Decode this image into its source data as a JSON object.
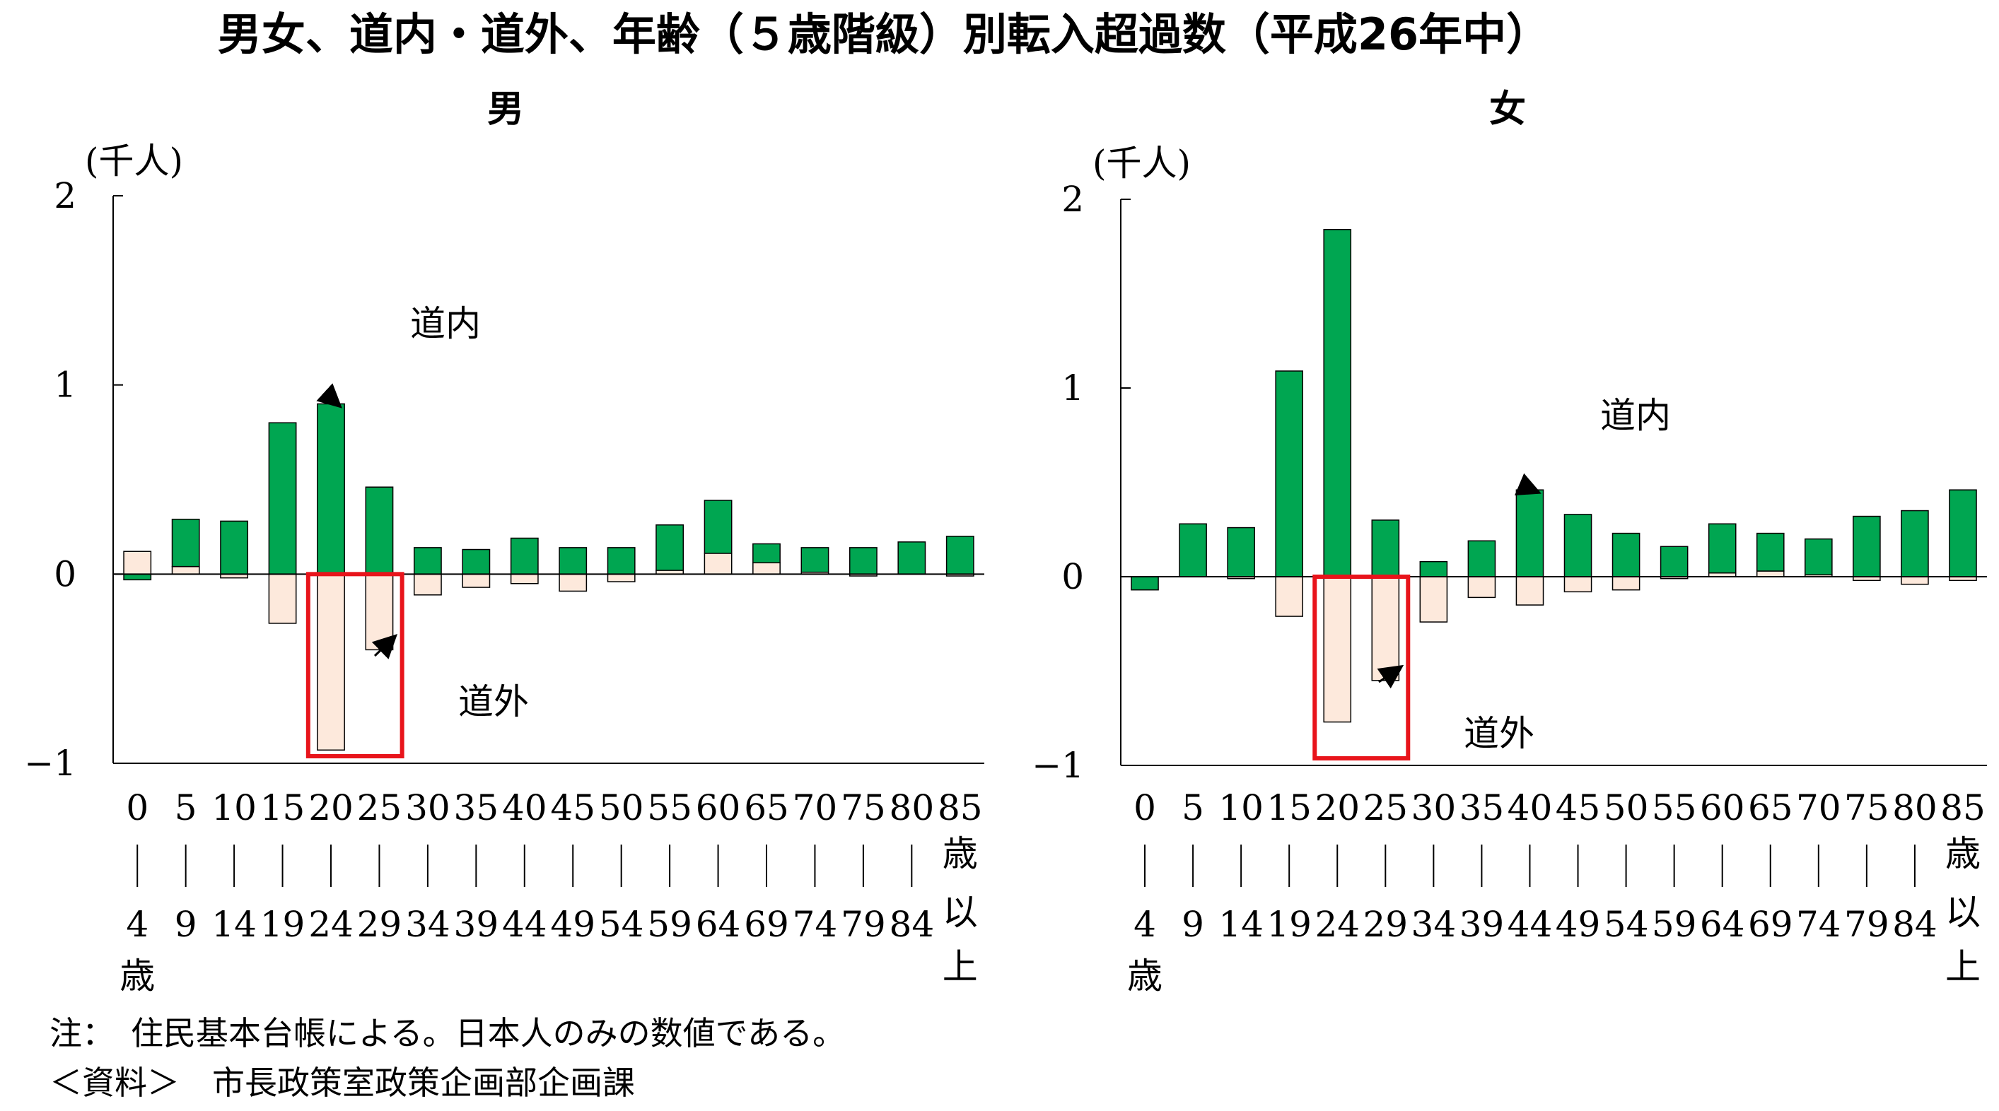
{
  "title": "男女、道内・道外、年齢（５歳階級）別転入超過数（平成26年中）",
  "note": "注：　住民基本台帳による。日本人のみの数値である。",
  "source": "＜資料＞　市長政策室政策企画部企画課",
  "colors": {
    "domestic": "#00a651",
    "outside": "#fde9dc",
    "highlight": "#e8141b"
  },
  "chart_data": [
    {
      "type": "bar",
      "title": "男",
      "ylabel": "(千人)",
      "ylim": [
        -1,
        2
      ],
      "yticks": [
        "2",
        "1",
        "0",
        "−1"
      ],
      "categories_top": [
        "0",
        "5",
        "10",
        "15",
        "20",
        "25",
        "30",
        "35",
        "40",
        "45",
        "50",
        "55",
        "60",
        "65",
        "70",
        "75",
        "80",
        "85"
      ],
      "categories_bottom": [
        "4",
        "9",
        "14",
        "19",
        "24",
        "29",
        "34",
        "39",
        "44",
        "49",
        "54",
        "59",
        "64",
        "69",
        "74",
        "79",
        "84",
        "以"
      ],
      "cat_first_suffix": "歳",
      "cat_last_mid": "歳",
      "cat_last_bottom": "上",
      "series": [
        {
          "name": "道内",
          "values": [
            -0.03,
            0.25,
            0.28,
            0.8,
            0.9,
            0.46,
            0.14,
            0.13,
            0.19,
            0.14,
            0.14,
            0.24,
            0.28,
            0.1,
            0.13,
            0.14,
            0.17,
            0.2
          ]
        },
        {
          "name": "道外",
          "values": [
            0.12,
            0.04,
            -0.02,
            -0.26,
            -0.93,
            -0.4,
            -0.11,
            -0.07,
            -0.05,
            -0.09,
            -0.04,
            0.02,
            0.11,
            0.06,
            0.01,
            -0.01,
            0.0,
            -0.01
          ]
        }
      ],
      "annotations": [
        {
          "text": "道内",
          "target_index": 4,
          "series": 0
        },
        {
          "text": "道外",
          "target_index": 5,
          "series": 1
        }
      ],
      "highlight_range": [
        4,
        5
      ]
    },
    {
      "type": "bar",
      "title": "女",
      "ylabel": "(千人)",
      "ylim": [
        -1,
        2
      ],
      "yticks": [
        "2",
        "1",
        "0",
        "−1"
      ],
      "categories_top": [
        "0",
        "5",
        "10",
        "15",
        "20",
        "25",
        "30",
        "35",
        "40",
        "45",
        "50",
        "55",
        "60",
        "65",
        "70",
        "75",
        "80",
        "85"
      ],
      "categories_bottom": [
        "4",
        "9",
        "14",
        "19",
        "24",
        "29",
        "34",
        "39",
        "44",
        "49",
        "54",
        "59",
        "64",
        "69",
        "74",
        "79",
        "84",
        "以"
      ],
      "cat_first_suffix": "歳",
      "cat_last_mid": "歳",
      "cat_last_bottom": "上",
      "series": [
        {
          "name": "道内",
          "values": [
            -0.07,
            0.28,
            0.26,
            1.09,
            1.84,
            0.3,
            0.08,
            0.19,
            0.46,
            0.33,
            0.23,
            0.16,
            0.26,
            0.2,
            0.19,
            0.32,
            0.35,
            0.46
          ]
        },
        {
          "name": "道外",
          "values": [
            0.0,
            0.0,
            -0.01,
            -0.21,
            -0.77,
            -0.55,
            -0.24,
            -0.11,
            -0.15,
            -0.08,
            -0.07,
            -0.01,
            0.02,
            0.03,
            0.01,
            -0.02,
            -0.04,
            -0.02
          ]
        }
      ],
      "annotations": [
        {
          "text": "道内",
          "target_index": 8,
          "series": 0
        },
        {
          "text": "道外",
          "target_index": 5,
          "series": 1
        }
      ],
      "highlight_range": [
        4,
        5
      ]
    }
  ]
}
